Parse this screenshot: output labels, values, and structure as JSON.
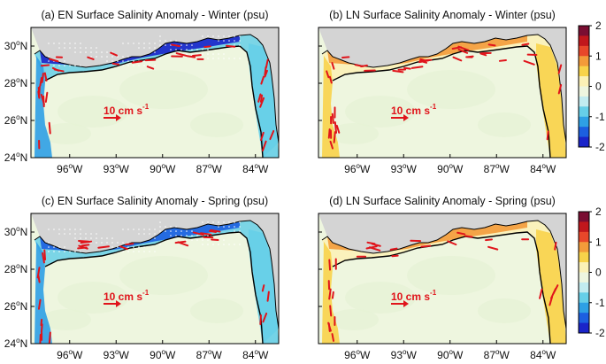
{
  "colors": {
    "land": "#d4d4d4",
    "coast": "#000000",
    "vector": "#e0141b",
    "ocean_neutral": "#eef6df"
  },
  "panels": [
    {
      "id": "a",
      "title": "(a) EN Surface Salinity Anomaly - Winter (psu)",
      "anomaly": "fresh",
      "strength": 1.0
    },
    {
      "id": "b",
      "title": "(b) LN Surface Salinity Anomaly - Winter (psu)",
      "anomaly": "salty",
      "strength": 1.0
    },
    {
      "id": "c",
      "title": "(c) EN Surface Salinity Anomaly - Spring (psu)",
      "anomaly": "fresh",
      "strength": 0.75
    },
    {
      "id": "d",
      "title": "(d) LN Surface Salinity Anomaly - Spring (psu)",
      "anomaly": "salty",
      "strength": 0.75
    }
  ],
  "axes": {
    "x_ticks": [
      {
        "deg": "96",
        "hemi": "W"
      },
      {
        "deg": "93",
        "hemi": "W"
      },
      {
        "deg": "90",
        "hemi": "W"
      },
      {
        "deg": "87",
        "hemi": "W"
      },
      {
        "deg": "84",
        "hemi": "W"
      }
    ],
    "y_ticks": [
      {
        "deg": "30",
        "hemi": "N"
      },
      {
        "deg": "28",
        "hemi": "N"
      },
      {
        "deg": "26",
        "hemi": "N"
      },
      {
        "deg": "24",
        "hemi": "N"
      }
    ],
    "x_range_lon": [
      -98.5,
      -82.5
    ],
    "y_range_lat": [
      24,
      31
    ]
  },
  "scale_arrow": {
    "value": "10 cm s",
    "exponent": "-1"
  },
  "colorbar": {
    "ticks": [
      "2",
      "1",
      "0",
      "-1",
      "-2"
    ],
    "range": [
      -2,
      2
    ],
    "colors": [
      "#7a0e32",
      "#c1171c",
      "#e8472a",
      "#f39b3a",
      "#f8d34a",
      "#fbf1b6",
      "#eef6df",
      "#c2ecf0",
      "#66cfe8",
      "#2ea0e5",
      "#1c5fe0",
      "#1a24c9"
    ]
  }
}
